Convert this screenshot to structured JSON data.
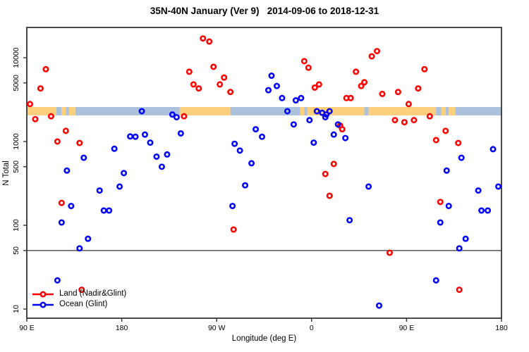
{
  "title": "35N-40N January (Ver 9)   2014-09-06 to 2018-12-31",
  "chart_data": {
    "type": "scatter",
    "title": "35N-40N January (Ver 9)   2014-09-06 to 2018-12-31",
    "xlabel": "Longitude (deg E)",
    "ylabel": "N Total",
    "x_axis": {
      "min": 90,
      "max": 540,
      "ticks": [
        {
          "value": 90,
          "label": "90 E"
        },
        {
          "value": 180,
          "label": "180"
        },
        {
          "value": 270,
          "label": "90 W"
        },
        {
          "value": 360,
          "label": "0"
        },
        {
          "value": 450,
          "label": "90 E"
        },
        {
          "value": 540,
          "label": "180"
        }
      ],
      "note": "longitude continues eastward past 360; data from 90E-180E plotted twice"
    },
    "y_axis": {
      "scale": "log",
      "min": 7.8,
      "max": 23000,
      "ticks": [
        10,
        50,
        100,
        500,
        1000,
        5000,
        10000
      ]
    },
    "grid": false,
    "legend_position": "bottom-left-inside",
    "reference_line_n": 50,
    "land_ocean_band": {
      "n_range": [
        2050,
        2580
      ],
      "land_color": "#FBCF7B",
      "ocean_color": "#ABC1DB",
      "segments": [
        {
          "from": 90,
          "to": 118,
          "surface": "land"
        },
        {
          "from": 118,
          "to": 123,
          "surface": "ocean"
        },
        {
          "from": 123,
          "to": 127,
          "surface": "land"
        },
        {
          "from": 127,
          "to": 130,
          "surface": "ocean"
        },
        {
          "from": 130,
          "to": 136,
          "surface": "land"
        },
        {
          "from": 136,
          "to": 235,
          "surface": "ocean"
        },
        {
          "from": 235,
          "to": 283,
          "surface": "land"
        },
        {
          "from": 283,
          "to": 349,
          "surface": "ocean"
        },
        {
          "from": 349,
          "to": 353,
          "surface": "land"
        },
        {
          "from": 353,
          "to": 356,
          "surface": "ocean"
        },
        {
          "from": 356,
          "to": 410,
          "surface": "land"
        },
        {
          "from": 410,
          "to": 414,
          "surface": "ocean"
        },
        {
          "from": 414,
          "to": 478,
          "surface": "land"
        },
        {
          "from": 478,
          "to": 483,
          "surface": "ocean"
        },
        {
          "from": 483,
          "to": 487,
          "surface": "land"
        },
        {
          "from": 487,
          "to": 490,
          "surface": "ocean"
        },
        {
          "from": 490,
          "to": 496,
          "surface": "land"
        },
        {
          "from": 496,
          "to": 540,
          "surface": "ocean"
        }
      ]
    },
    "series": [
      {
        "name": "Land (Nadir&Glint)",
        "color": "#FF0000",
        "marker": "open-circle",
        "points": [
          {
            "lon": 108,
            "n": 7300
          },
          {
            "lon": 103,
            "n": 4300
          },
          {
            "lon": 93,
            "n": 2800
          },
          {
            "lon": 98,
            "n": 1850
          },
          {
            "lon": 113,
            "n": 2000
          },
          {
            "lon": 127,
            "n": 1340
          },
          {
            "lon": 119,
            "n": 1000
          },
          {
            "lon": 140,
            "n": 960
          },
          {
            "lon": 123,
            "n": 185
          },
          {
            "lon": 142,
            "n": 17
          },
          {
            "lon": 257,
            "n": 17000
          },
          {
            "lon": 263,
            "n": 15600
          },
          {
            "lon": 267,
            "n": 7800
          },
          {
            "lon": 244,
            "n": 6800
          },
          {
            "lon": 277,
            "n": 5800
          },
          {
            "lon": 273,
            "n": 4800
          },
          {
            "lon": 248,
            "n": 4800
          },
          {
            "lon": 253,
            "n": 4300
          },
          {
            "lon": 283,
            "n": 3900
          },
          {
            "lon": 239,
            "n": 2000
          },
          {
            "lon": 286,
            "n": 89
          },
          {
            "lon": 353,
            "n": 9100
          },
          {
            "lon": 357,
            "n": 7600
          },
          {
            "lon": 417,
            "n": 10400
          },
          {
            "lon": 422,
            "n": 12000
          },
          {
            "lon": 402,
            "n": 6800
          },
          {
            "lon": 407,
            "n": 4600
          },
          {
            "lon": 410,
            "n": 5100
          },
          {
            "lon": 363,
            "n": 4400
          },
          {
            "lon": 367,
            "n": 4800
          },
          {
            "lon": 393,
            "n": 3300
          },
          {
            "lon": 397,
            "n": 3300
          },
          {
            "lon": 427,
            "n": 3700
          },
          {
            "lon": 442,
            "n": 3900
          },
          {
            "lon": 439,
            "n": 1800
          },
          {
            "lon": 387,
            "n": 1550
          },
          {
            "lon": 389,
            "n": 1400
          },
          {
            "lon": 381,
            "n": 540
          },
          {
            "lon": 373,
            "n": 410
          },
          {
            "lon": 377,
            "n": 225
          },
          {
            "lon": 434,
            "n": 47
          },
          {
            "lon": 467,
            "n": 7300
          },
          {
            "lon": 461,
            "n": 4300
          },
          {
            "lon": 452,
            "n": 2800
          },
          {
            "lon": 457,
            "n": 1800
          },
          {
            "lon": 448,
            "n": 1700
          },
          {
            "lon": 472,
            "n": 2000
          },
          {
            "lon": 487,
            "n": 1340
          },
          {
            "lon": 478,
            "n": 1040
          },
          {
            "lon": 499,
            "n": 960
          },
          {
            "lon": 482,
            "n": 190
          },
          {
            "lon": 500,
            "n": 17
          }
        ]
      },
      {
        "name": "Ocean (Glint)",
        "color": "#0000FF",
        "marker": "open-circle",
        "points": [
          {
            "lon": 199,
            "n": 2300
          },
          {
            "lon": 188,
            "n": 1150
          },
          {
            "lon": 193,
            "n": 1140
          },
          {
            "lon": 202,
            "n": 1210
          },
          {
            "lon": 207,
            "n": 970
          },
          {
            "lon": 173,
            "n": 820
          },
          {
            "lon": 144,
            "n": 640
          },
          {
            "lon": 128,
            "n": 450
          },
          {
            "lon": 182,
            "n": 420
          },
          {
            "lon": 159,
            "n": 260
          },
          {
            "lon": 178,
            "n": 290
          },
          {
            "lon": 123,
            "n": 108
          },
          {
            "lon": 132,
            "n": 170
          },
          {
            "lon": 163,
            "n": 150
          },
          {
            "lon": 168,
            "n": 150
          },
          {
            "lon": 148,
            "n": 69
          },
          {
            "lon": 140,
            "n": 53
          },
          {
            "lon": 119,
            "n": 22
          },
          {
            "lon": 228,
            "n": 2100
          },
          {
            "lon": 232,
            "n": 1950
          },
          {
            "lon": 236,
            "n": 1250
          },
          {
            "lon": 213,
            "n": 660
          },
          {
            "lon": 223,
            "n": 700
          },
          {
            "lon": 218,
            "n": 500
          },
          {
            "lon": 307,
            "n": 1400
          },
          {
            "lon": 313,
            "n": 1140
          },
          {
            "lon": 287,
            "n": 940
          },
          {
            "lon": 292,
            "n": 780
          },
          {
            "lon": 303,
            "n": 550
          },
          {
            "lon": 297,
            "n": 300
          },
          {
            "lon": 285,
            "n": 170
          },
          {
            "lon": 322,
            "n": 6100
          },
          {
            "lon": 327,
            "n": 4600
          },
          {
            "lon": 319,
            "n": 4100
          },
          {
            "lon": 332,
            "n": 3300
          },
          {
            "lon": 345,
            "n": 3100
          },
          {
            "lon": 350,
            "n": 3300
          },
          {
            "lon": 337,
            "n": 2300
          },
          {
            "lon": 365,
            "n": 2300
          },
          {
            "lon": 370,
            "n": 2200
          },
          {
            "lon": 374,
            "n": 2100
          },
          {
            "lon": 377,
            "n": 2300
          },
          {
            "lon": 373,
            "n": 1950
          },
          {
            "lon": 358,
            "n": 1800
          },
          {
            "lon": 343,
            "n": 1600
          },
          {
            "lon": 385,
            "n": 1600
          },
          {
            "lon": 381,
            "n": 1210
          },
          {
            "lon": 392,
            "n": 1100
          },
          {
            "lon": 362,
            "n": 970
          },
          {
            "lon": 414,
            "n": 290
          },
          {
            "lon": 396,
            "n": 115
          },
          {
            "lon": 424,
            "n": 11
          },
          {
            "lon": 532,
            "n": 810
          },
          {
            "lon": 502,
            "n": 640
          },
          {
            "lon": 488,
            "n": 450
          },
          {
            "lon": 518,
            "n": 260
          },
          {
            "lon": 537,
            "n": 290
          },
          {
            "lon": 490,
            "n": 170
          },
          {
            "lon": 521,
            "n": 150
          },
          {
            "lon": 527,
            "n": 150
          },
          {
            "lon": 482,
            "n": 108
          },
          {
            "lon": 506,
            "n": 69
          },
          {
            "lon": 500,
            "n": 53
          },
          {
            "lon": 478,
            "n": 22
          }
        ]
      }
    ]
  },
  "legend": {
    "items": [
      {
        "label": "Land (Nadir&Glint)",
        "color": "#FF0000"
      },
      {
        "label": "Ocean (Glint)",
        "color": "#0000FF"
      }
    ]
  }
}
